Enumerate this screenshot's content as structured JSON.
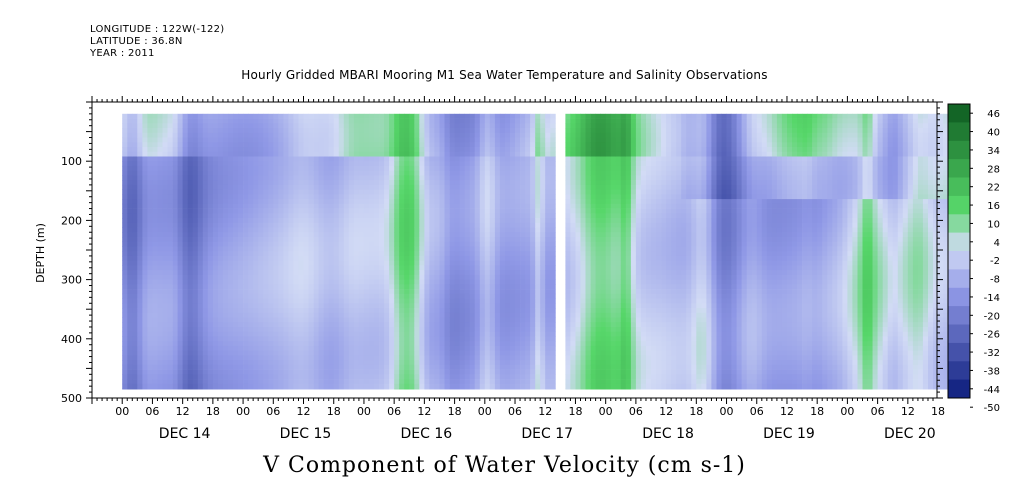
{
  "header": {
    "longitude": "LONGITUDE : 122W(-122)",
    "latitude": "LATITUDE : 36.8N",
    "year": "YEAR : 2011"
  },
  "chart_data": {
    "type": "heatmap",
    "title": "Hourly Gridded MBARI Mooring M1 Sea Water Temperature and Salinity Observations",
    "xlabel": "V Component of Water Velocity (cm s-1)",
    "ylabel": "DEPTH (m)",
    "y_ticks": [
      100,
      200,
      300,
      400,
      500
    ],
    "ylim": [
      500,
      0
    ],
    "hour_ticks": [
      "00",
      "06",
      "12",
      "18",
      "00",
      "06",
      "12",
      "18",
      "00",
      "06",
      "12",
      "18",
      "00",
      "06",
      "12",
      "18",
      "00",
      "06",
      "12",
      "18",
      "00",
      "06",
      "12",
      "18",
      "00",
      "06",
      "12",
      "18"
    ],
    "day_labels": [
      "DEC 14",
      "DEC 15",
      "DEC 16",
      "DEC 17",
      "DEC 18",
      "DEC 19",
      "DEC 20"
    ],
    "colorbar_ticks": [
      "46",
      "40",
      "34",
      "28",
      "22",
      "16",
      "10",
      "4",
      "-2",
      "-8",
      "-14",
      "-20",
      "-26",
      "-32",
      "-38",
      "-44",
      "-50"
    ],
    "colorbar_range": [
      -50,
      46
    ],
    "data_depth_range": [
      20,
      485
    ],
    "data_gap_hours": [
      86,
      88
    ],
    "colors": {
      "negative_strong": "#0a1b7a",
      "negative": "#8f98e6",
      "neutral": "#d2dbf5",
      "positive": "#57d76a",
      "positive_strong": "#0c5a1f"
    }
  }
}
